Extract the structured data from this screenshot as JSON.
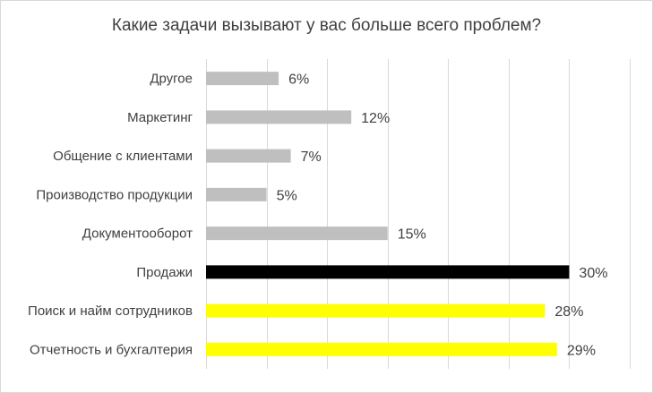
{
  "chart_data": {
    "type": "bar",
    "orientation": "horizontal",
    "title": "Какие задачи вызывают у вас больше всего проблем?",
    "categories": [
      "Другое",
      "Маркетинг",
      "Общение с клиентами",
      "Производство продукции",
      "Документооборот",
      "Продажи",
      "Поиск и найм сотрудников",
      "Отчетность и бухгалтерия"
    ],
    "values": [
      6,
      12,
      7,
      5,
      15,
      30,
      28,
      29
    ],
    "value_labels": [
      "6%",
      "12%",
      "7%",
      "5%",
      "15%",
      "30%",
      "28%",
      "29%"
    ],
    "colors": [
      "#bfbfbf",
      "#bfbfbf",
      "#bfbfbf",
      "#bfbfbf",
      "#bfbfbf",
      "#000000",
      "#ffff00",
      "#ffff00"
    ],
    "xlim": [
      0,
      35
    ],
    "grid": true,
    "legend": "none",
    "xlabel": "",
    "ylabel": ""
  }
}
